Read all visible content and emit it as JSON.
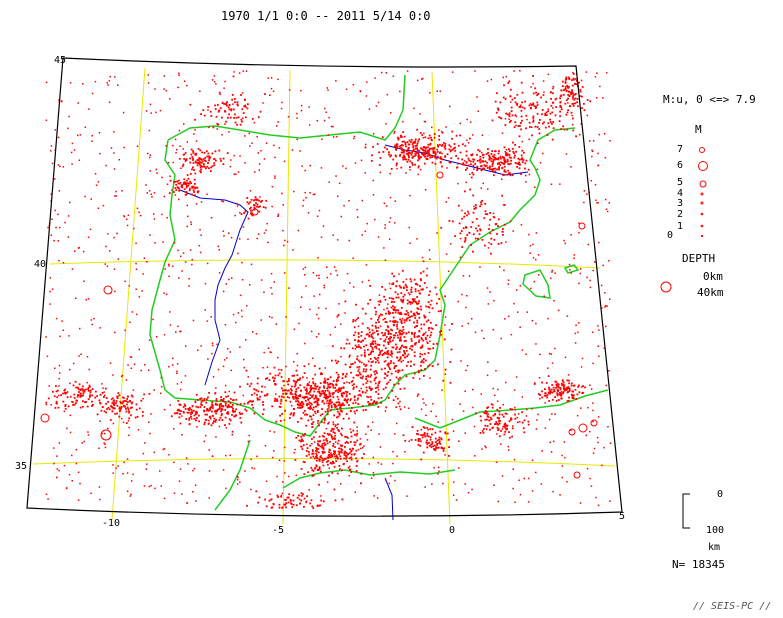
{
  "header": {
    "date_range": "1970 1/1 0:0 -- 2011 5/14 0:0"
  },
  "map": {
    "lat_labels": [
      "45",
      "40",
      "35"
    ],
    "lon_labels": [
      "-10",
      "-5",
      "0",
      "5"
    ],
    "colors": {
      "frame": "#000000",
      "grid": "#e8e800",
      "coast": "#22cc22",
      "river": "#0000cc",
      "quake": "#ff0000"
    }
  },
  "legend": {
    "magnitude_header": "M:u, 0 <=> 7.9",
    "m_title": "M",
    "magnitudes": [
      "7",
      "6",
      "5",
      "4",
      "3",
      "2",
      "1",
      "0"
    ],
    "depth_title": "DEPTH",
    "depth_values": [
      "0km",
      "40km"
    ],
    "scale_top": "0",
    "scale_bottom": "100",
    "scale_unit": "km",
    "count": "N= 18345"
  },
  "footer": {
    "watermark": "// SEIS-PC //"
  }
}
